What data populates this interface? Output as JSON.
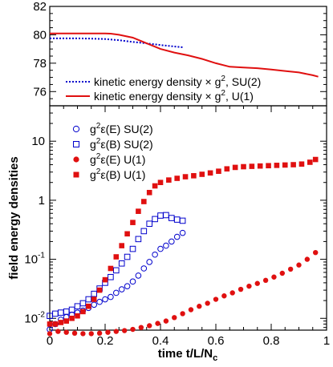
{
  "chart_data": [
    {
      "type": "line",
      "panel": "top",
      "xlim": [
        0,
        1
      ],
      "ylim": [
        75,
        82
      ],
      "yticks": [
        76,
        78,
        80,
        82
      ],
      "legend_placement": "bottom-left",
      "series": [
        {
          "name": "kinetic energy density × g², SU(2)",
          "legend_main": "kinetic energy density ×",
          "legend_g": "g",
          "legend_sup": "2",
          "legend_tail": ", SU(2)",
          "color": "#0000cc",
          "style": "dotted",
          "x": [
            0,
            0.05,
            0.1,
            0.15,
            0.2,
            0.25,
            0.3,
            0.35,
            0.4,
            0.45,
            0.48
          ],
          "y": [
            79.75,
            79.75,
            79.75,
            79.73,
            79.7,
            79.62,
            79.5,
            79.4,
            79.28,
            79.18,
            79.12
          ]
        },
        {
          "name": "kinetic energy density × g², U(1)",
          "legend_main": "kinetic energy density ×",
          "legend_g": "g",
          "legend_sup": "2",
          "legend_tail": ", U(1)",
          "color": "#e01010",
          "style": "solid",
          "x": [
            0,
            0.1,
            0.2,
            0.22,
            0.25,
            0.3,
            0.35,
            0.4,
            0.45,
            0.5,
            0.55,
            0.6,
            0.65,
            0.7,
            0.75,
            0.8,
            0.85,
            0.9,
            0.95,
            0.97
          ],
          "y": [
            80.1,
            80.1,
            80.1,
            80.08,
            80.0,
            79.8,
            79.4,
            79.0,
            78.75,
            78.55,
            78.3,
            78.0,
            77.75,
            77.7,
            77.65,
            77.55,
            77.45,
            77.35,
            77.15,
            77.05
          ]
        }
      ]
    },
    {
      "type": "scatter",
      "panel": "bottom",
      "xlabel_main": "time t/L/N",
      "xlabel_sub": "c",
      "ylabel": "field energy densities",
      "xlim": [
        0,
        1
      ],
      "ylim_log10": [
        -2.2,
        1.6
      ],
      "xticks": [
        0,
        0.2,
        0.4,
        0.6,
        0.8,
        1
      ],
      "xtick_labels": [
        "0",
        "0.2",
        "0.4",
        "0.6",
        "0.8",
        "1"
      ],
      "yticks_log10": [
        -2,
        -1,
        0,
        1
      ],
      "ytick_labels": [
        {
          "base": "10",
          "exp": "-2"
        },
        {
          "base": "10",
          "exp": "-1"
        },
        {
          "base": "1",
          "exp": ""
        },
        {
          "base": "10",
          "exp": ""
        }
      ],
      "scale_y": "log",
      "legend_placement": "top-left",
      "series": [
        {
          "name": "g²ε(E) SU(2)",
          "legend_parts": {
            "g": "g",
            "sup": "2",
            "rest": "ε(E) SU(2)"
          },
          "marker": "open-circle",
          "color": "#0000cc",
          "x": [
            0.0,
            0.02,
            0.04,
            0.06,
            0.08,
            0.1,
            0.12,
            0.14,
            0.16,
            0.18,
            0.2,
            0.22,
            0.24,
            0.26,
            0.28,
            0.3,
            0.32,
            0.34,
            0.36,
            0.38,
            0.4,
            0.42,
            0.44,
            0.46,
            0.48
          ],
          "y": [
            0.0065,
            0.008,
            0.0095,
            0.0105,
            0.0115,
            0.0125,
            0.0135,
            0.015,
            0.017,
            0.019,
            0.021,
            0.023,
            0.027,
            0.031,
            0.035,
            0.042,
            0.053,
            0.07,
            0.09,
            0.12,
            0.15,
            0.17,
            0.2,
            0.24,
            0.28
          ]
        },
        {
          "name": "g²ε(B) SU(2)",
          "legend_parts": {
            "g": "g",
            "sup": "2",
            "rest": "ε(B) SU(2)"
          },
          "marker": "open-square",
          "color": "#0000cc",
          "x": [
            0.0,
            0.02,
            0.04,
            0.06,
            0.08,
            0.1,
            0.12,
            0.14,
            0.16,
            0.18,
            0.2,
            0.22,
            0.24,
            0.26,
            0.28,
            0.3,
            0.32,
            0.34,
            0.36,
            0.38,
            0.4,
            0.42,
            0.44,
            0.46,
            0.48
          ],
          "y": [
            0.011,
            0.012,
            0.0125,
            0.013,
            0.014,
            0.016,
            0.018,
            0.021,
            0.026,
            0.032,
            0.04,
            0.05,
            0.065,
            0.085,
            0.11,
            0.15,
            0.22,
            0.3,
            0.4,
            0.48,
            0.55,
            0.56,
            0.5,
            0.47,
            0.45
          ]
        },
        {
          "name": "g²ε(E) U(1)",
          "legend_parts": {
            "g": "g",
            "sup": "2",
            "rest": "ε(E) U(1)"
          },
          "marker": "filled-circle",
          "color": "#e01010",
          "x": [
            0.0,
            0.03,
            0.06,
            0.09,
            0.12,
            0.15,
            0.18,
            0.21,
            0.24,
            0.27,
            0.3,
            0.33,
            0.36,
            0.39,
            0.42,
            0.45,
            0.48,
            0.51,
            0.54,
            0.57,
            0.6,
            0.63,
            0.66,
            0.69,
            0.72,
            0.75,
            0.78,
            0.81,
            0.84,
            0.87,
            0.9,
            0.93,
            0.96
          ],
          "y": [
            0.0055,
            0.006,
            0.0058,
            0.0056,
            0.0055,
            0.0055,
            0.0056,
            0.0058,
            0.006,
            0.0062,
            0.0065,
            0.007,
            0.0075,
            0.0082,
            0.009,
            0.0103,
            0.012,
            0.014,
            0.016,
            0.018,
            0.021,
            0.024,
            0.027,
            0.031,
            0.035,
            0.039,
            0.044,
            0.05,
            0.058,
            0.068,
            0.08,
            0.1,
            0.13
          ]
        },
        {
          "name": "g²ε(B) U(1)",
          "legend_parts": {
            "g": "g",
            "sup": "2",
            "rest": "ε(B) U(1)"
          },
          "marker": "filled-square",
          "color": "#e01010",
          "x": [
            0.0,
            0.02,
            0.04,
            0.06,
            0.08,
            0.1,
            0.12,
            0.14,
            0.16,
            0.18,
            0.2,
            0.22,
            0.24,
            0.26,
            0.28,
            0.3,
            0.32,
            0.34,
            0.36,
            0.38,
            0.4,
            0.43,
            0.46,
            0.49,
            0.52,
            0.55,
            0.58,
            0.61,
            0.64,
            0.67,
            0.7,
            0.73,
            0.76,
            0.79,
            0.82,
            0.85,
            0.88,
            0.91,
            0.94,
            0.96
          ],
          "y": [
            0.008,
            0.008,
            0.0085,
            0.009,
            0.01,
            0.011,
            0.013,
            0.016,
            0.021,
            0.03,
            0.045,
            0.07,
            0.11,
            0.17,
            0.27,
            0.42,
            0.65,
            0.95,
            1.35,
            1.75,
            2.0,
            2.2,
            2.35,
            2.5,
            2.6,
            2.75,
            2.9,
            3.1,
            3.4,
            3.6,
            3.7,
            3.75,
            3.8,
            3.85,
            3.9,
            3.95,
            4.0,
            4.1,
            4.4,
            4.9
          ]
        }
      ]
    }
  ]
}
